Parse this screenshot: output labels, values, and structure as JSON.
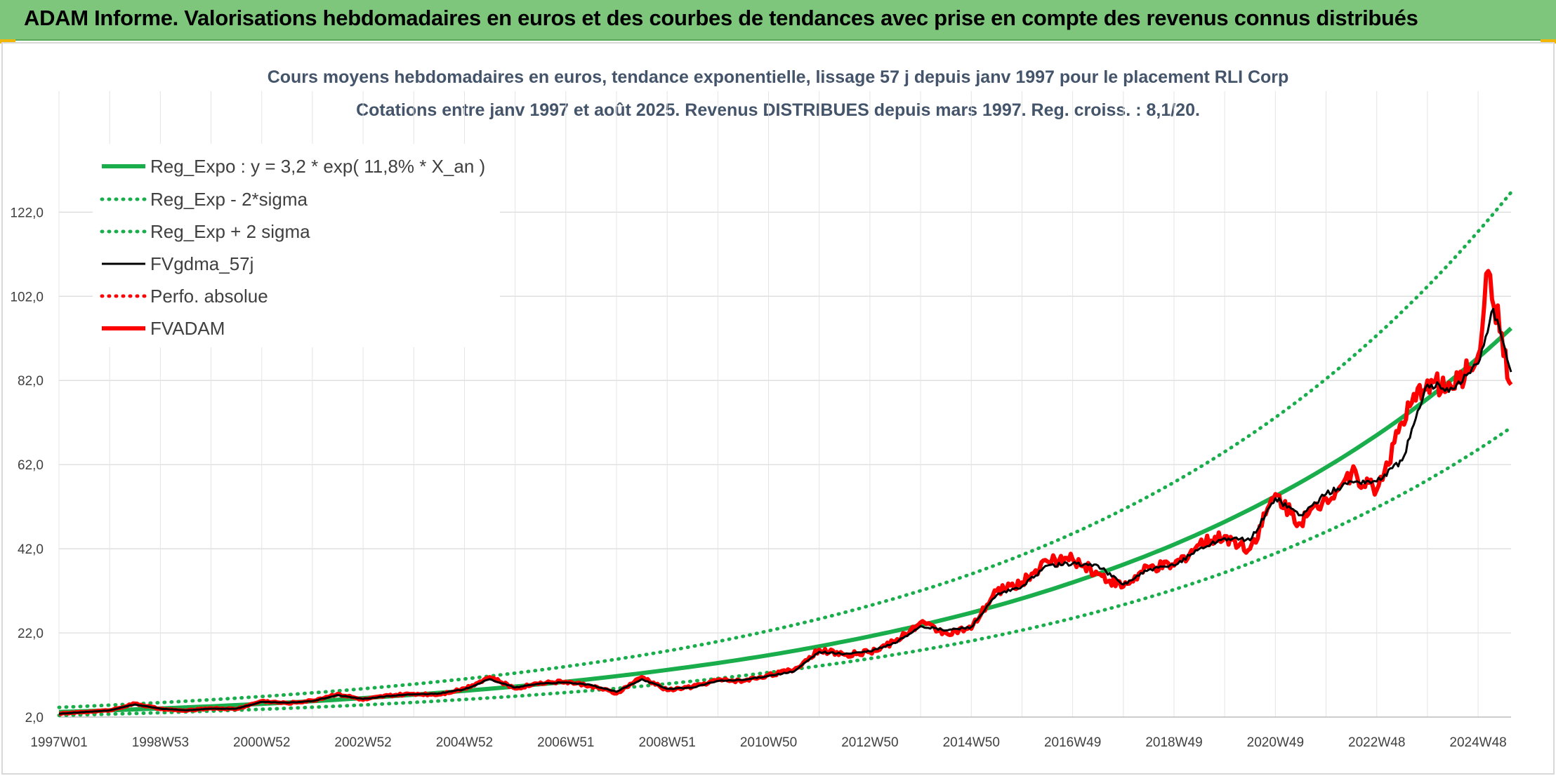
{
  "header": {
    "title": "ADAM Informe. Valorisations hebdomadaires en euros et des courbes de tendances avec prise en compte des revenus connus distribués"
  },
  "colors": {
    "header_bg": "#7dc67c",
    "reg_green": "#19ad4b",
    "price_red": "#ff0000",
    "smooth_black": "#000000",
    "title_text": "#44546a"
  },
  "chart_data": {
    "type": "line",
    "title": "Cours moyens hebdomadaires en euros, tendance exponentielle, lissage 57 j depuis janv 1997 pour le placement RLI Corp",
    "subtitle": "Cotations entre janv 1997 et août 2025. Revenus DISTRIBUES depuis mars 1997. Reg. croiss. : 8,1/20.",
    "xlabel": "",
    "ylabel": "",
    "ylim": [
      2,
      130
    ],
    "xlim": [
      1997.0,
      2025.65
    ],
    "grid": true,
    "legend_position": "top-left",
    "y_ticks": [
      "2,0",
      "22,0",
      "42,0",
      "62,0",
      "82,0",
      "102,0",
      "122,0"
    ],
    "y_tick_values": [
      2,
      22,
      42,
      62,
      82,
      102,
      122
    ],
    "x_ticks": [
      "1997W01",
      "1998W53",
      "2000W52",
      "2002W52",
      "2004W52",
      "2006W51",
      "2008W51",
      "2010W50",
      "2012W50",
      "2014W50",
      "2016W49",
      "2018W49",
      "2020W49",
      "2022W48",
      "2024W48"
    ],
    "x_tick_values": [
      1997.0,
      1999.0,
      2001.0,
      2003.0,
      2005.0,
      2007.0,
      2009.0,
      2011.0,
      2013.0,
      2015.0,
      2017.0,
      2019.0,
      2021.0,
      2023.0,
      2025.0
    ],
    "regression": {
      "a": 3.2,
      "rate": 0.118
    },
    "series": [
      {
        "name": "Reg_Expo : y = 3,2 * exp( 11,8% *  X_an )",
        "style": "solid-thick",
        "color": "#19ad4b",
        "x": [
          1997.0,
          1999.0,
          2001.0,
          2003.0,
          2005.0,
          2007.0,
          2009.0,
          2011.0,
          2013.0,
          2015.0,
          2017.0,
          2019.0,
          2021.0,
          2023.0,
          2025.0,
          2025.65
        ],
        "values": [
          3.2,
          4.05,
          5.13,
          6.5,
          8.24,
          10.4,
          13.2,
          16.7,
          21.2,
          26.8,
          34.0,
          43.0,
          54.5,
          69.0,
          87.4,
          94.4
        ]
      },
      {
        "name": "Reg_Exp - 2*sigma",
        "style": "dotted",
        "color": "#19ad4b",
        "x": [
          1997.0,
          1999.0,
          2001.0,
          2003.0,
          2005.0,
          2007.0,
          2009.0,
          2011.0,
          2013.0,
          2015.0,
          2017.0,
          2019.0,
          2021.0,
          2023.0,
          2025.0,
          2025.65
        ],
        "values": [
          2.4,
          3.04,
          3.85,
          4.88,
          6.18,
          7.83,
          9.91,
          12.6,
          15.9,
          20.1,
          25.5,
          32.3,
          40.9,
          51.8,
          65.6,
          70.8
        ]
      },
      {
        "name": "Reg_Exp + 2 sigma",
        "style": "dotted",
        "color": "#19ad4b",
        "x": [
          1997.0,
          1999.0,
          2001.0,
          2003.0,
          2005.0,
          2007.0,
          2009.0,
          2011.0,
          2013.0,
          2015.0,
          2017.0,
          2019.0,
          2021.0,
          2023.0,
          2025.0,
          2025.65
        ],
        "values": [
          4.3,
          5.44,
          6.89,
          8.73,
          11.06,
          14.0,
          17.7,
          22.5,
          28.5,
          36.0,
          45.6,
          57.8,
          73.2,
          92.7,
          117.4,
          126.7
        ]
      },
      {
        "name": "FVgdma_57j",
        "style": "solid",
        "color": "#000000",
        "x": [
          1997.0,
          1998.0,
          1998.5,
          1999.0,
          1999.5,
          2000.0,
          2000.5,
          2001.0,
          2001.5,
          2002.0,
          2002.5,
          2003.0,
          2003.5,
          2004.0,
          2004.5,
          2005.0,
          2005.5,
          2006.0,
          2006.5,
          2007.0,
          2007.5,
          2008.0,
          2008.5,
          2009.0,
          2009.5,
          2010.0,
          2010.5,
          2011.0,
          2011.5,
          2012.0,
          2012.5,
          2013.0,
          2013.5,
          2014.0,
          2014.5,
          2015.0,
          2015.5,
          2016.0,
          2016.5,
          2017.0,
          2017.5,
          2018.0,
          2018.5,
          2019.0,
          2019.5,
          2020.0,
          2020.5,
          2021.0,
          2021.5,
          2022.0,
          2022.5,
          2023.0,
          2023.5,
          2024.0,
          2024.5,
          2025.0,
          2025.3,
          2025.65
        ],
        "values": [
          2.8,
          3.6,
          5.0,
          4.0,
          3.6,
          4.0,
          4.0,
          5.6,
          5.4,
          5.8,
          7.2,
          6.3,
          7.0,
          7.4,
          7.6,
          8.6,
          11.0,
          9.0,
          10.0,
          10.2,
          9.6,
          8.0,
          11.0,
          8.7,
          9.0,
          10.6,
          10.8,
          11.8,
          12.8,
          17.5,
          17.0,
          17.6,
          19.6,
          23.6,
          22.6,
          23.4,
          31.0,
          33.0,
          38.0,
          38.5,
          38.0,
          33.5,
          37.0,
          38.0,
          42.0,
          44.5,
          44.0,
          54.0,
          50.0,
          55.0,
          58.0,
          58.0,
          63.0,
          81.0,
          80.0,
          86.0,
          99.0,
          84.0
        ]
      },
      {
        "name": "Perfo. absolue",
        "style": "dotted",
        "color": "#ff0000",
        "x": [],
        "values": []
      },
      {
        "name": "FVADAM",
        "style": "solid-thick",
        "color": "#ff0000",
        "x": [
          1997.0,
          1998.0,
          1998.5,
          1999.0,
          1999.5,
          2000.0,
          2000.5,
          2001.0,
          2001.5,
          2002.0,
          2002.5,
          2003.0,
          2003.5,
          2004.0,
          2004.5,
          2005.0,
          2005.5,
          2006.0,
          2006.5,
          2007.0,
          2007.5,
          2008.0,
          2008.5,
          2009.0,
          2009.5,
          2010.0,
          2010.5,
          2011.0,
          2011.5,
          2012.0,
          2012.5,
          2013.0,
          2013.5,
          2014.0,
          2014.5,
          2015.0,
          2015.5,
          2016.0,
          2016.5,
          2017.0,
          2017.5,
          2018.0,
          2018.5,
          2019.0,
          2019.5,
          2020.0,
          2020.5,
          2021.0,
          2021.5,
          2022.0,
          2022.5,
          2023.0,
          2023.5,
          2024.0,
          2024.5,
          2025.0,
          2025.2,
          2025.65
        ],
        "values": [
          2.8,
          3.6,
          5.2,
          3.9,
          3.5,
          4.1,
          3.9,
          5.8,
          5.3,
          5.9,
          7.5,
          6.1,
          7.1,
          7.5,
          7.4,
          8.8,
          11.5,
          8.8,
          10.2,
          10.4,
          9.4,
          7.6,
          11.5,
          8.4,
          9.2,
          10.8,
          10.6,
          12.0,
          13.2,
          18.0,
          16.8,
          17.4,
          20.0,
          24.5,
          22.0,
          23.0,
          32.0,
          34.0,
          39.0,
          39.5,
          36.0,
          33.0,
          37.5,
          38.0,
          43.0,
          45.0,
          42.0,
          55.0,
          48.0,
          54.0,
          60.0,
          56.0,
          72.0,
          82.0,
          80.0,
          88.0,
          108.0,
          81.0
        ]
      }
    ]
  }
}
